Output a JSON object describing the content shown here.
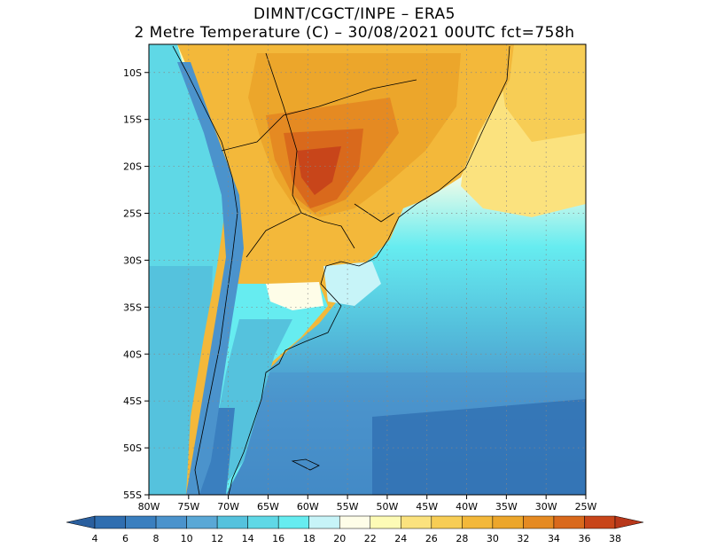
{
  "header": {
    "title_line1": "DIMNT/CGCT/INPE  –  ERA5",
    "title_line2": "2 Metre Temperature (C)  –   30/08/2021 00UTC fct=758h"
  },
  "map": {
    "lon_range": [
      -80,
      -25
    ],
    "lat_range": [
      -55,
      -7
    ],
    "lat_ticks": [
      "10S",
      "15S",
      "20S",
      "25S",
      "30S",
      "35S",
      "40S",
      "45S",
      "50S",
      "55S"
    ],
    "lon_ticks": [
      "80W",
      "75W",
      "70W",
      "65W",
      "60W",
      "55W",
      "50W",
      "45W",
      "40W",
      "35W",
      "30W",
      "25W"
    ],
    "grid": "dotted"
  },
  "colorbar": {
    "levels": [
      "4",
      "6",
      "8",
      "10",
      "12",
      "14",
      "16",
      "18",
      "20",
      "22",
      "24",
      "26",
      "28",
      "30",
      "32",
      "34",
      "36",
      "38"
    ],
    "colors": [
      "#2f6eb0",
      "#3a7fbf",
      "#4b93cc",
      "#5aa8d6",
      "#55c2dd",
      "#5fd8e6",
      "#66ecf0",
      "#c7f4f8",
      "#fefde8",
      "#fdfbb6",
      "#fbe27e",
      "#f7cd55",
      "#f3b83a",
      "#eca62b",
      "#e58a22",
      "#d9691c",
      "#c8451a"
    ]
  }
}
